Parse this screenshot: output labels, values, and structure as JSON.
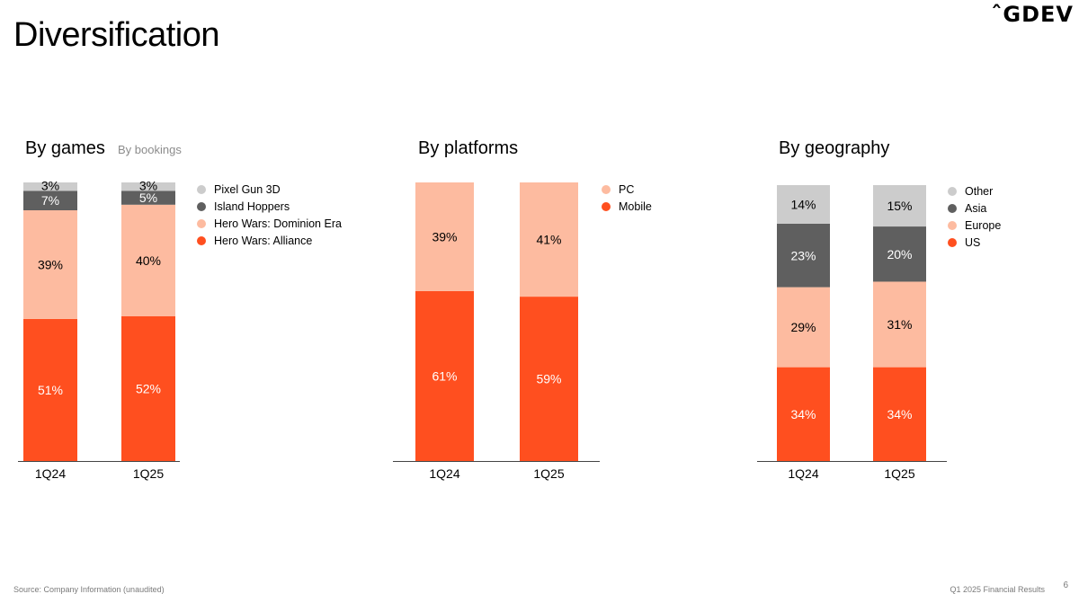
{
  "slide": {
    "title": "Diversification",
    "logo": "GDEV",
    "footer_source": "Source: Company Information (unaudited)",
    "footer_report": "Q1 2025 Financial Results",
    "page_number": "6"
  },
  "chart_data": [
    {
      "type": "bar",
      "stacked": true,
      "title": "By games",
      "subtitle": "By bookings",
      "categories": [
        "1Q24",
        "1Q25"
      ],
      "ylim": [
        0,
        100
      ],
      "grid": false,
      "legend_position": "right",
      "series": [
        {
          "name": "Hero Wars: Alliance",
          "values": [
            51,
            52
          ],
          "color": "#FF4F1F",
          "label_color": "#ffffff"
        },
        {
          "name": "Hero Wars: Dominion Era",
          "values": [
            39,
            40
          ],
          "color": "#FDBBA0",
          "label_color": "#000000"
        },
        {
          "name": "Island Hoppers",
          "values": [
            7,
            5
          ],
          "color": "#5F5F5F",
          "label_color": "#ffffff"
        },
        {
          "name": "Pixel Gun 3D",
          "values": [
            3,
            3
          ],
          "color": "#CCCCCC",
          "label_color": "#000000"
        }
      ],
      "labels": [
        [
          "51%",
          "39%",
          "7%",
          "3%"
        ],
        [
          "52%",
          "40%",
          "5%",
          "3%"
        ]
      ]
    },
    {
      "type": "bar",
      "stacked": true,
      "title": "By platforms",
      "categories": [
        "1Q24",
        "1Q25"
      ],
      "ylim": [
        0,
        100
      ],
      "grid": false,
      "legend_position": "right",
      "series": [
        {
          "name": "Mobile",
          "values": [
            61,
            59
          ],
          "color": "#FF4F1F",
          "label_color": "#ffffff"
        },
        {
          "name": "PC",
          "values": [
            39,
            41
          ],
          "color": "#FDBBA0",
          "label_color": "#000000"
        }
      ],
      "labels": [
        [
          "61%",
          "39%"
        ],
        [
          "59%",
          "41%"
        ]
      ]
    },
    {
      "type": "bar",
      "stacked": true,
      "title": "By geography",
      "categories": [
        "1Q24",
        "1Q25"
      ],
      "ylim": [
        0,
        100
      ],
      "grid": false,
      "legend_position": "right",
      "series": [
        {
          "name": "US",
          "values": [
            34,
            34
          ],
          "color": "#FF4F1F",
          "label_color": "#ffffff"
        },
        {
          "name": "Europe",
          "values": [
            29,
            31
          ],
          "color": "#FDBBA0",
          "label_color": "#000000"
        },
        {
          "name": "Asia",
          "values": [
            23,
            20
          ],
          "color": "#5F5F5F",
          "label_color": "#ffffff"
        },
        {
          "name": "Other",
          "values": [
            14,
            15
          ],
          "color": "#CCCCCC",
          "label_color": "#000000"
        }
      ],
      "labels": [
        [
          "34%",
          "29%",
          "23%",
          "14%"
        ],
        [
          "34%",
          "31%",
          "20%",
          "15%"
        ]
      ]
    }
  ]
}
